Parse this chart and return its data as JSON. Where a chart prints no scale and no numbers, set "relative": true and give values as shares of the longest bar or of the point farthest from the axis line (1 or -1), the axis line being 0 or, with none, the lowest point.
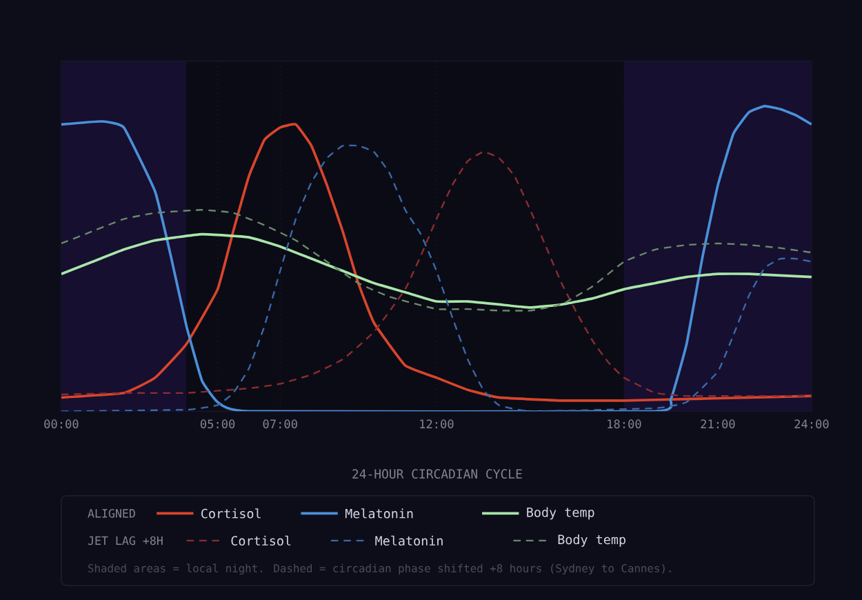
{
  "chart_data": {
    "type": "line",
    "relative": true,
    "xlabel": "24-HOUR CIRCADIAN CYCLE",
    "xlim": [
      0,
      24
    ],
    "xticks": [
      {
        "value": 0,
        "label": "00:00"
      },
      {
        "value": 5,
        "label": "05:00"
      },
      {
        "value": 7,
        "label": "07:00"
      },
      {
        "value": 12,
        "label": "12:00"
      },
      {
        "value": 18,
        "label": "18:00"
      },
      {
        "value": 21,
        "label": "21:00"
      },
      {
        "value": 24,
        "label": "24:00"
      }
    ],
    "grid": "x",
    "legend": "bottom",
    "bands": [
      {
        "axis": "x",
        "from": 0,
        "to": 4,
        "color": "#160f30"
      },
      {
        "axis": "x",
        "from": 18,
        "to": 24,
        "color": "#160f30"
      }
    ],
    "annotations": [
      "ALIGNED",
      "JET LAG +8H",
      "Shaded areas = local night. Dashed = circadian phase shifted +8 hours (Sydney to Cannes)."
    ],
    "series": [
      {
        "name": "Cortisol",
        "color": "#d9452b",
        "line_style": "solid",
        "x": [
          0,
          2,
          3,
          4,
          5,
          5.5,
          6,
          6.5,
          7,
          7.5,
          8,
          8.5,
          9,
          9.5,
          10,
          11,
          12,
          13,
          14,
          16,
          18,
          20,
          22,
          24
        ],
        "values": [
          0.045,
          0.06,
          0.11,
          0.22,
          0.4,
          0.59,
          0.77,
          0.89,
          0.93,
          0.94,
          0.87,
          0.74,
          0.59,
          0.42,
          0.29,
          0.15,
          0.11,
          0.07,
          0.045,
          0.035,
          0.035,
          0.04,
          0.045,
          0.05
        ]
      },
      {
        "name": "Melatonin",
        "color": "#4a90d9",
        "line_style": "solid",
        "x": [
          0,
          1.3,
          2,
          3,
          3.5,
          4,
          4.5,
          5,
          6,
          19,
          19.5,
          20,
          20.5,
          21,
          21.5,
          22,
          22.5,
          23,
          23.5,
          24
        ],
        "values": [
          0.94,
          0.95,
          0.93,
          0.72,
          0.51,
          0.28,
          0.1,
          0.03,
          0,
          0,
          0.04,
          0.22,
          0.5,
          0.74,
          0.91,
          0.98,
          1,
          0.99,
          0.97,
          0.94
        ]
      },
      {
        "name": "Body temp",
        "color": "#a8e6a8",
        "line_style": "solid",
        "x": [
          0,
          1,
          2,
          3,
          4.5,
          6,
          7,
          8,
          9,
          10,
          11,
          12,
          13,
          14,
          15,
          16,
          17,
          18,
          19,
          20,
          21,
          22,
          24
        ],
        "values": [
          0.45,
          0.49,
          0.53,
          0.56,
          0.58,
          0.57,
          0.54,
          0.5,
          0.46,
          0.42,
          0.39,
          0.36,
          0.36,
          0.35,
          0.34,
          0.35,
          0.37,
          0.4,
          0.42,
          0.44,
          0.45,
          0.45,
          0.44
        ]
      },
      {
        "name": "Cortisol",
        "color": "#8b2e2e",
        "line_style": "dashed",
        "x": [
          0,
          2,
          4,
          6,
          7,
          8,
          9,
          10,
          11,
          11.5,
          12,
          12.5,
          13,
          13.5,
          14,
          14.5,
          15,
          15.5,
          16,
          16.5,
          17,
          17.5,
          18,
          19,
          20,
          22,
          24
        ],
        "values": [
          0.055,
          0.06,
          0.06,
          0.075,
          0.09,
          0.12,
          0.17,
          0.26,
          0.4,
          0.51,
          0.63,
          0.74,
          0.82,
          0.85,
          0.83,
          0.77,
          0.66,
          0.54,
          0.42,
          0.32,
          0.23,
          0.16,
          0.11,
          0.06,
          0.05,
          0.05,
          0.05
        ]
      },
      {
        "name": "Melatonin",
        "color": "#3a6aa8",
        "line_style": "dashed",
        "x": [
          0,
          4,
          5,
          5.5,
          6,
          6.5,
          7,
          7.5,
          8,
          8.5,
          9,
          9.5,
          10,
          10.5,
          11,
          11.5,
          12,
          12.5,
          13,
          13.5,
          14,
          15,
          19,
          20,
          21,
          21.5,
          22,
          22.5,
          23,
          23.5,
          24
        ],
        "values": [
          0,
          0.005,
          0.02,
          0.06,
          0.14,
          0.28,
          0.46,
          0.63,
          0.75,
          0.83,
          0.87,
          0.87,
          0.85,
          0.78,
          0.66,
          0.58,
          0.46,
          0.31,
          0.17,
          0.07,
          0.02,
          0,
          0.01,
          0.03,
          0.13,
          0.25,
          0.38,
          0.47,
          0.5,
          0.5,
          0.49
        ]
      },
      {
        "name": "Body temp",
        "color": "#6b8a6b",
        "line_style": "dashed",
        "x": [
          0,
          1,
          2,
          3,
          4.5,
          5.5,
          6.5,
          7.5,
          8.5,
          9.5,
          10.5,
          12,
          13,
          14,
          15,
          16,
          17,
          18,
          19,
          20,
          21,
          22,
          23,
          24
        ],
        "values": [
          0.55,
          0.59,
          0.63,
          0.65,
          0.66,
          0.65,
          0.61,
          0.56,
          0.49,
          0.42,
          0.375,
          0.335,
          0.335,
          0.33,
          0.33,
          0.35,
          0.41,
          0.49,
          0.53,
          0.545,
          0.55,
          0.545,
          0.535,
          0.52
        ]
      }
    ]
  }
}
